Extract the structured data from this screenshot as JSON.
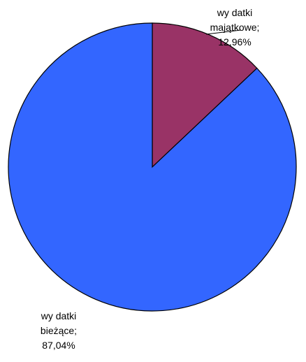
{
  "chart_data": {
    "type": "pie",
    "title": "",
    "start_angle_deg": 0,
    "direction": "clockwise",
    "slices": [
      {
        "name": "wy datki majątkowe",
        "value": 12.96,
        "color": "#993366",
        "label_lines": [
          "wy datki",
          "majątkowe;",
          "12,96%"
        ]
      },
      {
        "name": "wy datki bieżące",
        "value": 87.04,
        "color": "#3366FF",
        "label_lines": [
          "wy datki",
          "bieżące;",
          "87,04%"
        ]
      }
    ],
    "legend": "none"
  }
}
